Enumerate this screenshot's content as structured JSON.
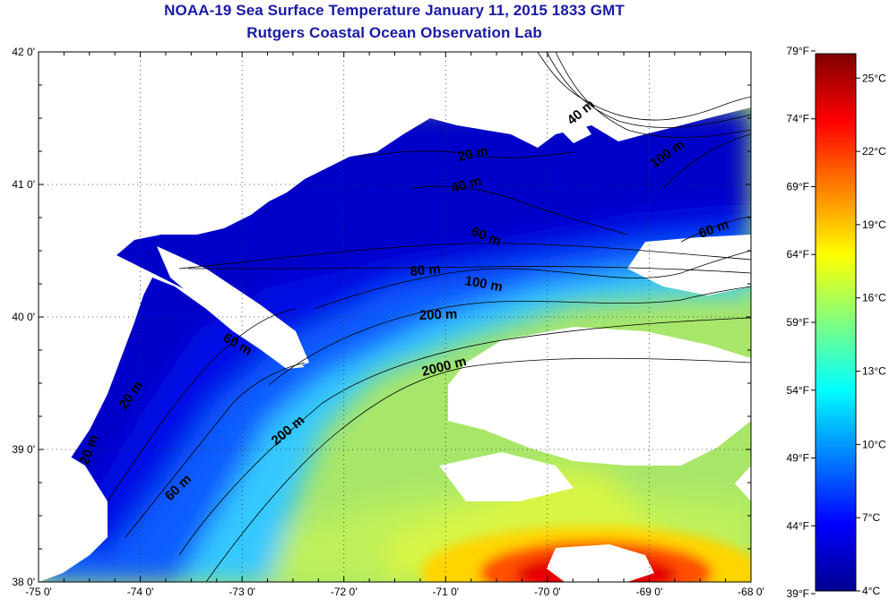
{
  "title": "NOAA-19 Sea Surface Temperature January 11, 2015 1833 GMT",
  "subtitle": "Rutgers Coastal Ocean Observation Lab",
  "map": {
    "lon_ticks": [
      "-75 0'",
      "-74 0'",
      "-73 0'",
      "-72 0'",
      "-71 0'",
      "-70 0'",
      "-69 0'",
      "-68 0'"
    ],
    "lat_ticks": [
      "42 0'",
      "41 0'",
      "40 0'",
      "39 0'",
      "38 0'"
    ],
    "lon_range": [
      -75,
      -68
    ],
    "lat_range": [
      38,
      42
    ],
    "grid": "dotted",
    "land_color": "#ffffff",
    "contour_labels": [
      "20 m",
      "40 m",
      "60 m",
      "80 m",
      "100 m",
      "200 m",
      "2000 m",
      "40 m",
      "100 m",
      "60 m",
      "60 m",
      "20 m",
      "200 m",
      "60 m",
      "20 m"
    ]
  },
  "colorbar": {
    "fahrenheit": [
      "79°F",
      "74°F",
      "69°F",
      "64°F",
      "59°F",
      "54°F",
      "49°F",
      "44°F",
      "39°F"
    ],
    "celsius": [
      "25°C",
      "22°C",
      "19°C",
      "16°C",
      "13°C",
      "10°C",
      "7°C",
      "4°C"
    ],
    "range_c": [
      4,
      26
    ],
    "colormap": [
      "#00008f",
      "#0000ff",
      "#0080ff",
      "#00ffff",
      "#80ff80",
      "#ffff00",
      "#ff8000",
      "#ff0000",
      "#800000"
    ]
  }
}
